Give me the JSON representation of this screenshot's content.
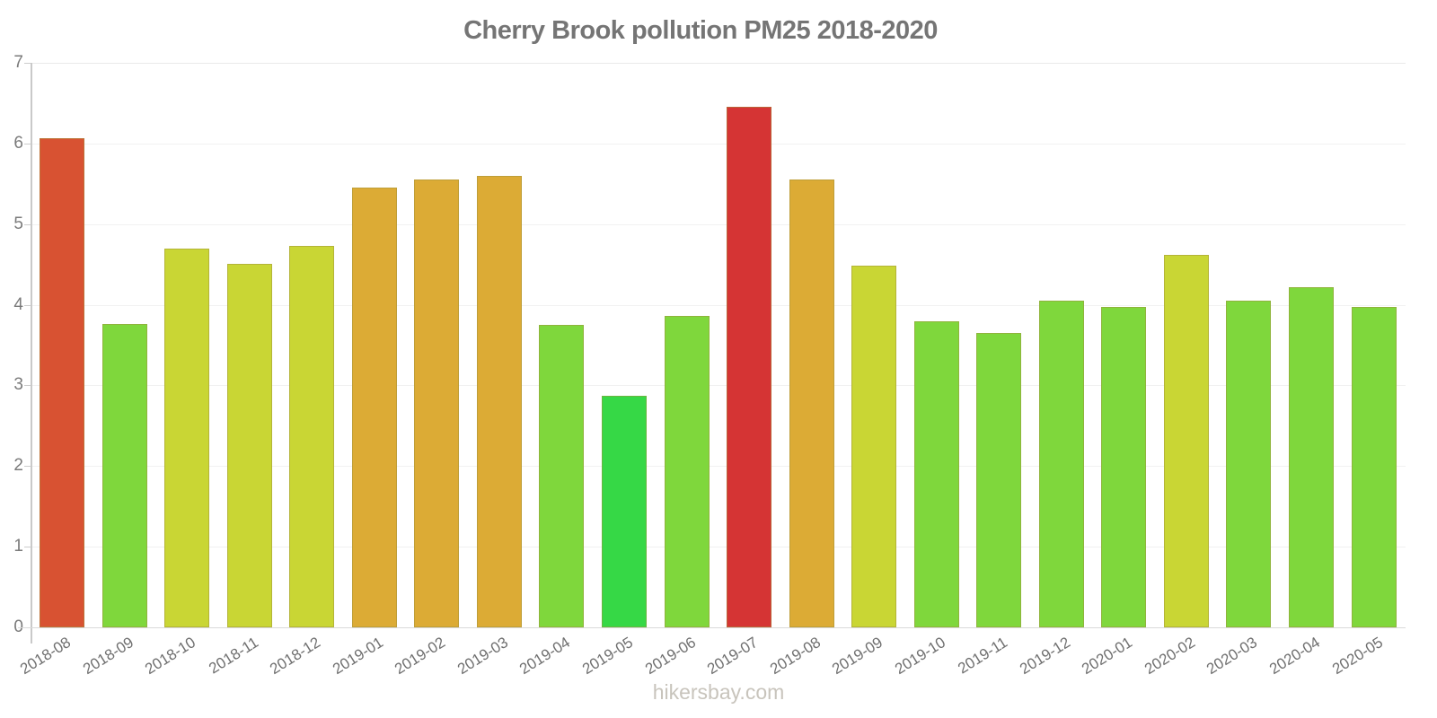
{
  "title": "Cherry Brook pollution PM25 2018-2020",
  "watermark": "hikersbay.com",
  "chart_data": {
    "type": "bar",
    "title": "Cherry Brook pollution PM25 2018-2020",
    "xlabel": "",
    "ylabel": "",
    "ylim": [
      0,
      7
    ],
    "yticks": [
      0,
      1,
      2,
      3,
      4,
      5,
      6,
      7
    ],
    "grid": "horizontal-light",
    "legend": "none",
    "categories": [
      "2018-08",
      "2018-09",
      "2018-10",
      "2018-11",
      "2018-12",
      "2019-01",
      "2019-02",
      "2019-03",
      "2019-04",
      "2019-05",
      "2019-06",
      "2019-07",
      "2019-08",
      "2019-09",
      "2019-10",
      "2019-11",
      "2019-12",
      "2020-01",
      "2020-02",
      "2020-03",
      "2020-04",
      "2020-05"
    ],
    "values": [
      6.07,
      3.76,
      4.7,
      4.51,
      4.73,
      5.45,
      5.55,
      5.6,
      3.75,
      2.87,
      3.86,
      6.45,
      5.55,
      4.49,
      3.79,
      3.65,
      4.05,
      3.97,
      4.62,
      4.05,
      4.22,
      3.97
    ],
    "bar_colors": [
      "#d85232",
      "#7fd73c",
      "#c9d634",
      "#c9d634",
      "#c9d634",
      "#dcab35",
      "#dcab35",
      "#dcab35",
      "#7fd73c",
      "#36d846",
      "#7fd73c",
      "#d53434",
      "#dcab35",
      "#c9d634",
      "#7fd73c",
      "#7fd73c",
      "#7fd73c",
      "#7fd73c",
      "#c9d634",
      "#7fd73c",
      "#7fd73c",
      "#7fd73c"
    ],
    "color_legend": {
      "vermilion_red": "#d85232",
      "crimson_red": "#d53434",
      "orange": "#dcab35",
      "yellow_green": "#c9d634",
      "green": "#7fd73c",
      "bright_green": "#36d846"
    },
    "style_colors": {
      "title_text": "#757575",
      "axis_text": "#7a7a7a",
      "axis_line": "#c9c9c9",
      "gridline": "#f1f1f1",
      "watermark_text": "#c8c4bc"
    }
  }
}
